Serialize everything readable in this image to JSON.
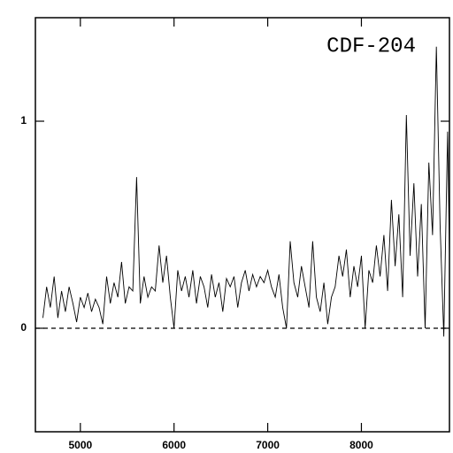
{
  "chart_data": {
    "type": "line",
    "annotation": "CDF-204",
    "x": [
      4600,
      4640,
      4680,
      4720,
      4760,
      4800,
      4840,
      4880,
      4920,
      4960,
      5000,
      5040,
      5080,
      5120,
      5160,
      5200,
      5240,
      5280,
      5320,
      5360,
      5400,
      5440,
      5480,
      5520,
      5560,
      5600,
      5640,
      5680,
      5720,
      5760,
      5800,
      5840,
      5880,
      5920,
      5960,
      6000,
      6040,
      6080,
      6120,
      6160,
      6200,
      6240,
      6280,
      6320,
      6360,
      6400,
      6440,
      6480,
      6520,
      6560,
      6600,
      6640,
      6680,
      6720,
      6760,
      6800,
      6840,
      6880,
      6920,
      6960,
      7000,
      7040,
      7080,
      7120,
      7160,
      7200,
      7240,
      7280,
      7320,
      7360,
      7400,
      7440,
      7480,
      7520,
      7560,
      7600,
      7640,
      7680,
      7720,
      7760,
      7800,
      7840,
      7880,
      7920,
      7960,
      8000,
      8040,
      8080,
      8120,
      8160,
      8200,
      8240,
      8280,
      8320,
      8360,
      8400,
      8440,
      8480,
      8520,
      8560,
      8600,
      8640,
      8680,
      8720,
      8760,
      8800,
      8840,
      8880,
      8920,
      8940
    ],
    "series": [
      {
        "color": "#000000",
        "values": [
          0.05,
          0.2,
          0.1,
          0.25,
          0.05,
          0.18,
          0.08,
          0.2,
          0.12,
          0.03,
          0.15,
          0.1,
          0.17,
          0.08,
          0.14,
          0.1,
          0.02,
          0.25,
          0.12,
          0.22,
          0.15,
          0.32,
          0.12,
          0.2,
          0.18,
          0.73,
          0.12,
          0.25,
          0.15,
          0.2,
          0.18,
          0.4,
          0.22,
          0.35,
          0.15,
          0.0,
          0.28,
          0.18,
          0.25,
          0.15,
          0.28,
          0.12,
          0.25,
          0.2,
          0.1,
          0.26,
          0.15,
          0.22,
          0.08,
          0.24,
          0.2,
          0.25,
          0.1,
          0.22,
          0.28,
          0.18,
          0.26,
          0.2,
          0.25,
          0.22,
          0.28,
          0.2,
          0.15,
          0.26,
          0.1,
          0.0,
          0.42,
          0.22,
          0.15,
          0.3,
          0.2,
          0.1,
          0.42,
          0.15,
          0.08,
          0.22,
          0.02,
          0.15,
          0.2,
          0.35,
          0.25,
          0.38,
          0.15,
          0.3,
          0.2,
          0.35,
          0.0,
          0.28,
          0.22,
          0.4,
          0.25,
          0.45,
          0.18,
          0.62,
          0.3,
          0.55,
          0.15,
          1.03,
          0.35,
          0.7,
          0.25,
          0.6,
          0.0,
          0.8,
          0.45,
          1.36,
          0.5,
          -0.04,
          0.95,
          0.35
        ]
      }
    ],
    "xlim": [
      4520,
      8940
    ],
    "xticks": [
      5000,
      6000,
      7000,
      8000
    ],
    "ylim": [
      -0.5,
      1.5
    ],
    "yticks": [
      0,
      1
    ],
    "reference_line": 0
  }
}
